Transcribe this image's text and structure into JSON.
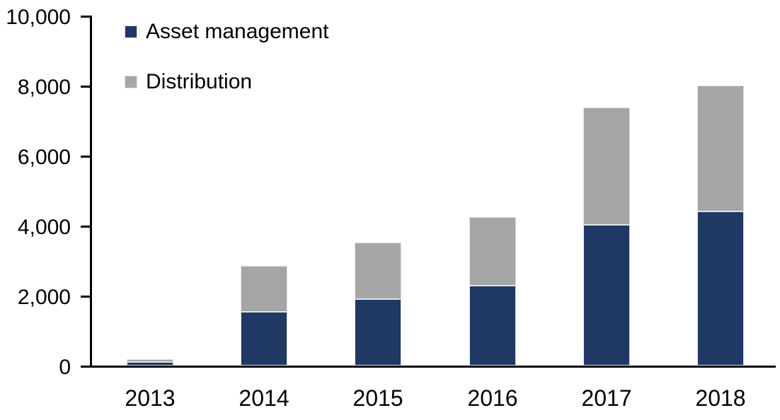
{
  "chart_data": {
    "type": "bar",
    "stacked": true,
    "title": "",
    "xlabel": "",
    "ylabel": "",
    "categories": [
      "2013",
      "2014",
      "2015",
      "2016",
      "2017",
      "2018"
    ],
    "series": [
      {
        "name": "Asset management",
        "color": "#1F3864",
        "values": [
          100,
          1530,
          1890,
          2290,
          4020,
          4400
        ]
      },
      {
        "name": "Distribution",
        "color": "#A6A6A6",
        "values": [
          80,
          1320,
          1610,
          1950,
          3350,
          3600
        ]
      }
    ],
    "totals": [
      180,
      2850,
      3500,
      4240,
      7370,
      8000
    ],
    "ylim": [
      0,
      10000
    ],
    "ytick_values": [
      0,
      2000,
      4000,
      6000,
      8000,
      10000
    ],
    "ytick_labels": [
      "0",
      "2,000",
      "4,000",
      "6,000",
      "8,000",
      "10,000"
    ],
    "grid": false,
    "legend_position": "top-left",
    "axis_color": "#000000",
    "background_color": "#FFFFFF"
  }
}
